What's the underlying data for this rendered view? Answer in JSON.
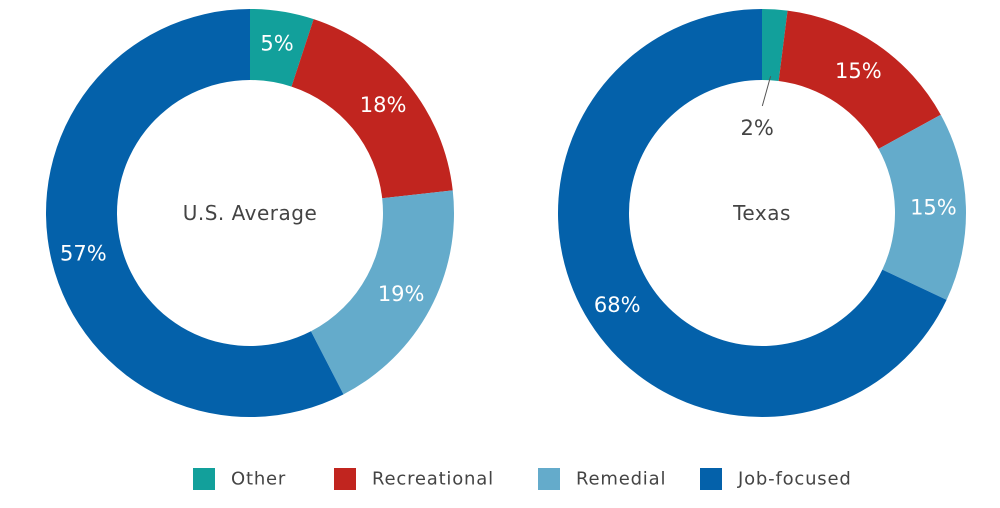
{
  "chart_data": [
    {
      "type": "pie",
      "title": "U.S. Average",
      "categories": [
        "Other",
        "Recreational",
        "Remedial",
        "Job-focused"
      ],
      "values": [
        5,
        18,
        19,
        57
      ],
      "value_labels": [
        "5%",
        "18%",
        "19%",
        "57%"
      ],
      "colors": [
        "#12A09B",
        "#C1251F",
        "#64ABCB",
        "#0461AA"
      ]
    },
    {
      "type": "pie",
      "title": "Texas",
      "categories": [
        "Other",
        "Recreational",
        "Remedial",
        "Job-focused"
      ],
      "values": [
        2,
        15,
        15,
        68
      ],
      "value_labels": [
        "2%",
        "15%",
        "15%",
        "68%"
      ],
      "colors": [
        "#12A09B",
        "#C1251F",
        "#64ABCB",
        "#0461AA"
      ]
    }
  ],
  "legend": {
    "placement": "bottom-center",
    "items": [
      {
        "label": "Other",
        "color": "#12A09B"
      },
      {
        "label": "Recreational",
        "color": "#C1251F"
      },
      {
        "label": "Remedial",
        "color": "#64ABCB"
      },
      {
        "label": "Job-focused",
        "color": "#0461AA"
      }
    ]
  }
}
